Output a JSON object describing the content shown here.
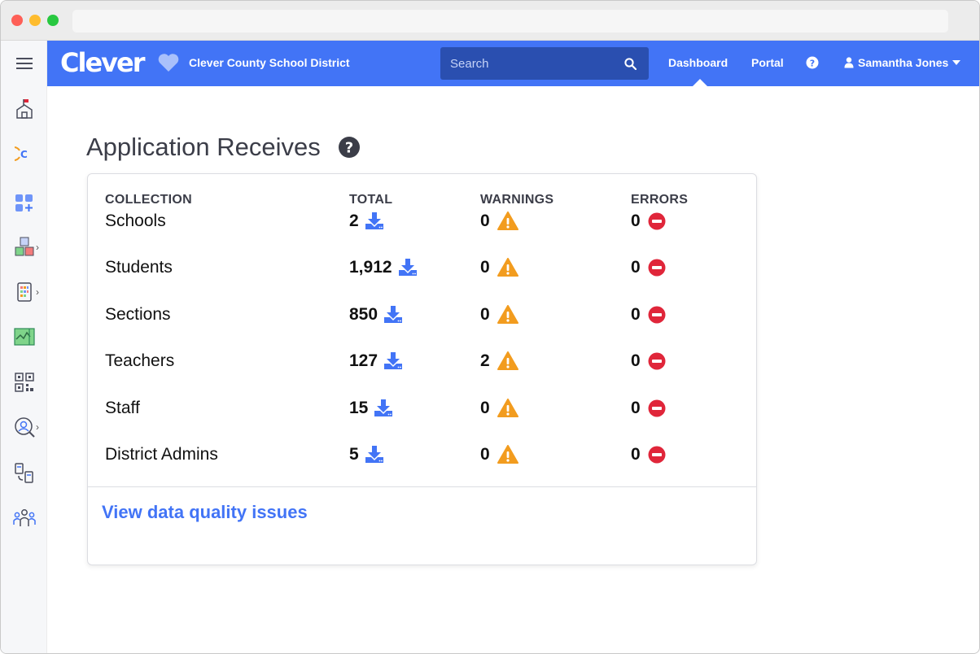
{
  "browser": {
    "url": ""
  },
  "rail": {
    "items": [
      {
        "icon": "menu-icon"
      },
      {
        "icon": "school-icon"
      },
      {
        "icon": "clever-c-icon"
      },
      {
        "icon": "apps-add-icon"
      },
      {
        "icon": "abc-blocks-icon",
        "has_submenu": true
      },
      {
        "icon": "tablet-grid-icon",
        "has_submenu": true
      },
      {
        "icon": "analytics-icon"
      },
      {
        "icon": "qr-code-icon"
      },
      {
        "icon": "user-search-icon",
        "has_submenu": true
      },
      {
        "icon": "data-sync-icon"
      },
      {
        "icon": "people-group-icon"
      }
    ]
  },
  "header": {
    "logo": "Clever",
    "district": "Clever County School District",
    "search": {
      "placeholder": "Search",
      "value": ""
    },
    "nav": {
      "dashboard": "Dashboard",
      "portal": "Portal"
    },
    "user": "Samantha Jones",
    "accent": "#4274f6"
  },
  "page": {
    "title": "Application Receives"
  },
  "table": {
    "headers": {
      "collection": "COLLECTION",
      "total": "TOTAL",
      "warnings": "WARNINGS",
      "errors": "ERRORS"
    },
    "rows": [
      {
        "collection": "Schools",
        "total": "2",
        "warnings": "0",
        "errors": "0"
      },
      {
        "collection": "Students",
        "total": "1,912",
        "warnings": "0",
        "errors": "0"
      },
      {
        "collection": "Sections",
        "total": "850",
        "warnings": "0",
        "errors": "0"
      },
      {
        "collection": "Teachers",
        "total": "127",
        "warnings": "2",
        "errors": "0"
      },
      {
        "collection": "Staff",
        "total": "15",
        "warnings": "0",
        "errors": "0"
      },
      {
        "collection": "District Admins",
        "total": "5",
        "warnings": "0",
        "errors": "0"
      }
    ]
  },
  "footer_link": "View data quality issues",
  "colors": {
    "warning": "#f29c1f",
    "error": "#e0263a",
    "download": "#4274f6"
  }
}
